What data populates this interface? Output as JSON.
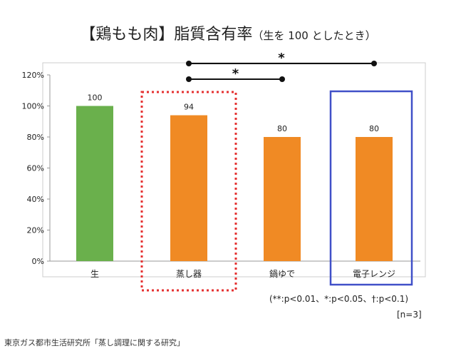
{
  "title": "【鶏もも肉】脂質含有率",
  "subtitle": "（生を 100 としたとき）",
  "chart_data": {
    "type": "bar",
    "categories": [
      "生",
      "蒸し器",
      "鍋ゆで",
      "電子レンジ"
    ],
    "values": [
      100,
      94,
      80,
      80
    ],
    "data_labels": [
      "100",
      "94",
      "80",
      "80"
    ],
    "colors": [
      "#6ab04c",
      "#f08a24",
      "#f08a24",
      "#f08a24"
    ],
    "ylim": [
      0,
      120
    ],
    "yticks": [
      "0%",
      "20%",
      "40%",
      "60%",
      "80%",
      "100%",
      "120%"
    ],
    "grid": false,
    "significance": [
      {
        "from": "蒸し器",
        "to": "電子レンジ",
        "mark": "*"
      },
      {
        "from": "蒸し器",
        "to": "鍋ゆで",
        "mark": "*"
      }
    ],
    "highlights": [
      {
        "category": "蒸し器",
        "style": "red dotted",
        "color": "#e53030"
      },
      {
        "category": "電子レンジ",
        "style": "blue solid",
        "color": "#4050c8"
      }
    ]
  },
  "legend_note": "(**:p<0.01、*:p<0.05、†:p<0.1)",
  "n_note": "[n=3]",
  "source": "東京ガス都市生活研究所「蒸し調理に関する研究」"
}
